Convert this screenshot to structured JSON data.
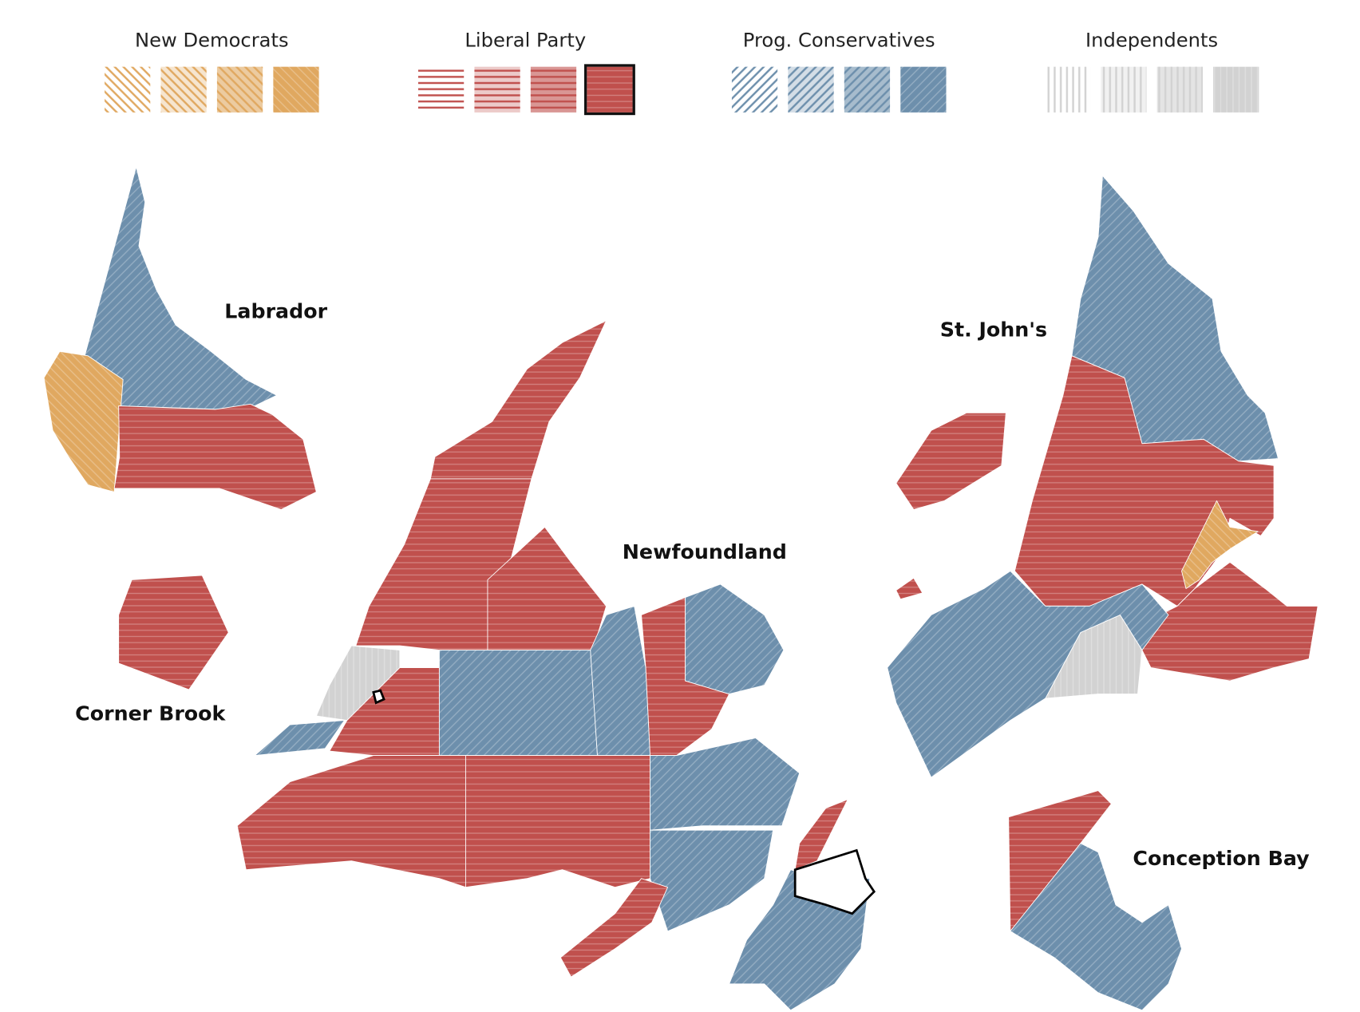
{
  "legend": {
    "groups": [
      {
        "name": "New Democrats",
        "color": "#e0a860"
      },
      {
        "name": "Liberal Party",
        "color": "#c0504d"
      },
      {
        "name": "Prog. Conservatives",
        "color": "#6d8fac"
      },
      {
        "name": "Independents",
        "color": "#d2d2d2"
      }
    ]
  },
  "map": {
    "labels": [
      "Labrador",
      "Corner Brook",
      "Newfoundland",
      "St. John's",
      "Conception Bay"
    ]
  }
}
